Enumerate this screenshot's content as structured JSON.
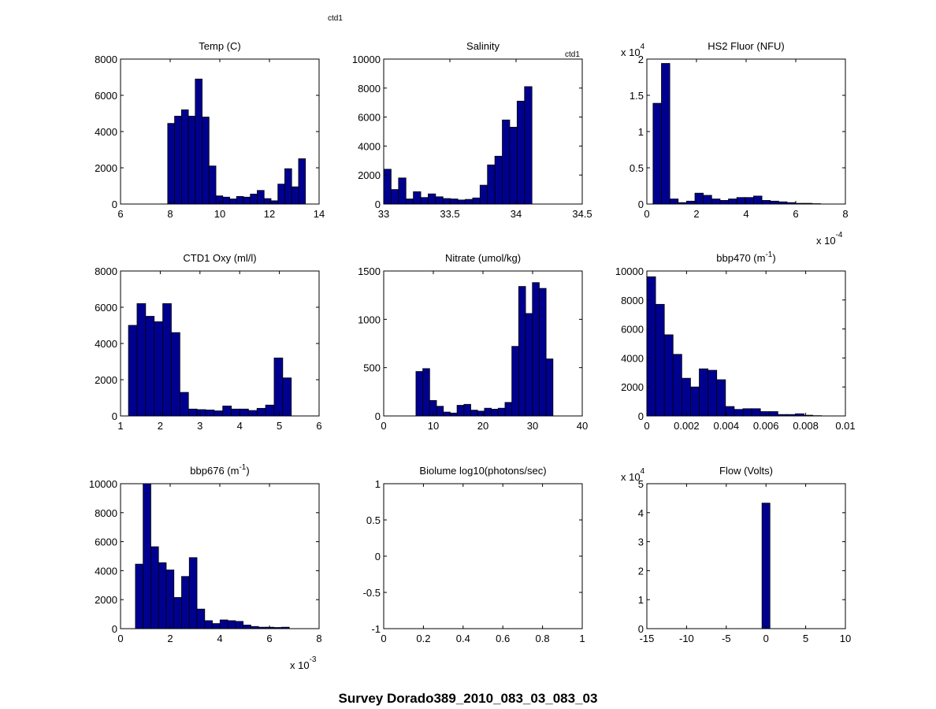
{
  "figure": {
    "title": "Survey Dorado389_2010_083_03_083_03",
    "annotations": [
      {
        "text": "ctd1",
        "panel": "top"
      },
      {
        "text": "ctd1",
        "panel": 1
      }
    ],
    "bar_color": "#00008f",
    "edge_color": "#000000"
  },
  "chart_data": [
    {
      "type": "bar",
      "title": "Temp (C)",
      "title_sup": "",
      "xlim": [
        6,
        14
      ],
      "ylim": [
        0,
        8000
      ],
      "xticks": [
        "6",
        "8",
        "10",
        "12",
        "14"
      ],
      "yticks": [
        "0",
        "2000",
        "4000",
        "6000",
        "8000"
      ],
      "x_mult": null,
      "y_mult": null,
      "bin_range": [
        7.9,
        13.45
      ],
      "values": [
        4450,
        4850,
        5200,
        4850,
        6900,
        4800,
        2100,
        450,
        380,
        280,
        420,
        380,
        550,
        750,
        300,
        180,
        1100,
        1950,
        950,
        2500
      ]
    },
    {
      "type": "bar",
      "title": "Salinity",
      "title_sup": "",
      "xlim": [
        33,
        34.5
      ],
      "ylim": [
        0,
        10000
      ],
      "xticks": [
        "33",
        "33.5",
        "34",
        "34.5"
      ],
      "yticks": [
        "0",
        "2000",
        "4000",
        "6000",
        "8000",
        "10000"
      ],
      "x_mult": null,
      "y_mult": null,
      "bin_range": [
        33.0,
        34.12
      ],
      "values": [
        2400,
        1000,
        1800,
        350,
        850,
        450,
        700,
        500,
        380,
        350,
        280,
        320,
        420,
        1300,
        2700,
        3300,
        5800,
        5300,
        7100,
        8100
      ]
    },
    {
      "type": "bar",
      "title": "HS2 Fluor (NFU)",
      "title_sup": "",
      "xlim": [
        0,
        8
      ],
      "ylim": [
        0,
        2
      ],
      "xticks": [
        "0",
        "2",
        "4",
        "6",
        "8"
      ],
      "yticks": [
        "0",
        "0.5",
        "1",
        "1.5",
        "2"
      ],
      "x_mult": {
        "base": "x 10",
        "exp": "-4"
      },
      "y_mult": {
        "base": "x 10",
        "exp": "4"
      },
      "bin_range": [
        0.25,
        7.0
      ],
      "values": [
        1.39,
        1.94,
        0.07,
        0.02,
        0.04,
        0.15,
        0.12,
        0.07,
        0.05,
        0.07,
        0.09,
        0.09,
        0.11,
        0.05,
        0.04,
        0.03,
        0.02,
        0.01,
        0.01,
        0.005
      ]
    },
    {
      "type": "bar",
      "title": "CTD1 Oxy (ml/l)",
      "title_sup": "",
      "xlim": [
        1,
        6
      ],
      "ylim": [
        0,
        8000
      ],
      "xticks": [
        "1",
        "2",
        "3",
        "4",
        "5",
        "6"
      ],
      "yticks": [
        "0",
        "2000",
        "4000",
        "6000",
        "8000"
      ],
      "x_mult": null,
      "y_mult": null,
      "bin_range": [
        1.2,
        5.3
      ],
      "values": [
        5000,
        6200,
        5500,
        5200,
        6200,
        4600,
        1300,
        380,
        350,
        330,
        280,
        550,
        380,
        380,
        300,
        420,
        600,
        3200,
        2100
      ]
    },
    {
      "type": "bar",
      "title": "Nitrate (umol/kg)",
      "title_sup": "",
      "xlim": [
        0,
        40
      ],
      "ylim": [
        0,
        1500
      ],
      "xticks": [
        "0",
        "10",
        "20",
        "30",
        "40"
      ],
      "yticks": [
        "0",
        "500",
        "1000",
        "1500"
      ],
      "x_mult": null,
      "y_mult": null,
      "bin_range": [
        6.5,
        34.1
      ],
      "values": [
        460,
        490,
        160,
        100,
        40,
        30,
        110,
        120,
        60,
        50,
        80,
        70,
        80,
        140,
        720,
        1340,
        1060,
        1380,
        1320,
        590
      ]
    },
    {
      "type": "bar",
      "title": "bbp470 (m",
      "title_sup": "-1",
      "title_after": ")",
      "xlim": [
        0,
        0.01
      ],
      "ylim": [
        0,
        10000
      ],
      "xticks": [
        "0",
        "0.002",
        "0.004",
        "0.006",
        "0.008",
        "0.01"
      ],
      "yticks": [
        "0",
        "2000",
        "4000",
        "6000",
        "8000",
        "10000"
      ],
      "x_mult": null,
      "y_mult": null,
      "bin_range": [
        0.0,
        0.0088
      ],
      "values": [
        9600,
        7700,
        5600,
        4250,
        2600,
        2000,
        3250,
        3150,
        2500,
        650,
        450,
        500,
        500,
        300,
        300,
        100,
        100,
        150,
        50,
        20
      ]
    },
    {
      "type": "bar",
      "title": "bbp676 (m",
      "title_sup": "-1",
      "title_after": ")",
      "xlim": [
        0,
        8
      ],
      "ylim": [
        0,
        10000
      ],
      "xticks": [
        "0",
        "2",
        "4",
        "6",
        "8"
      ],
      "yticks": [
        "0",
        "2000",
        "4000",
        "6000",
        "8000",
        "10000"
      ],
      "x_mult": {
        "base": "x 10",
        "exp": "-3"
      },
      "y_mult": null,
      "bin_range": [
        0.6,
        6.8
      ],
      "values": [
        4450,
        10000,
        5650,
        4550,
        4050,
        2150,
        3600,
        4900,
        1350,
        550,
        350,
        600,
        550,
        500,
        250,
        150,
        100,
        100,
        80,
        100
      ]
    },
    {
      "type": "bar",
      "title": "Biolume log10(photons/sec)",
      "title_sup": "",
      "xlim": [
        0,
        1
      ],
      "ylim": [
        -1,
        1
      ],
      "xticks": [
        "0",
        "0.2",
        "0.4",
        "0.6",
        "0.8",
        "1"
      ],
      "yticks": [
        "-1",
        "-0.5",
        "0",
        "0.5",
        "1"
      ],
      "x_mult": null,
      "y_mult": null,
      "bin_range": [
        0,
        1
      ],
      "values": []
    },
    {
      "type": "bar",
      "title": "Flow (Volts)",
      "title_sup": "",
      "xlim": [
        -15,
        10
      ],
      "ylim": [
        0,
        5
      ],
      "xticks": [
        "-15",
        "-10",
        "-5",
        "0",
        "5",
        "10"
      ],
      "yticks": [
        "0",
        "1",
        "2",
        "3",
        "4",
        "5"
      ],
      "x_mult": null,
      "y_mult": {
        "base": "x 10",
        "exp": "4"
      },
      "bin_range": [
        -0.5,
        0.5
      ],
      "values": [
        4.33
      ]
    }
  ]
}
